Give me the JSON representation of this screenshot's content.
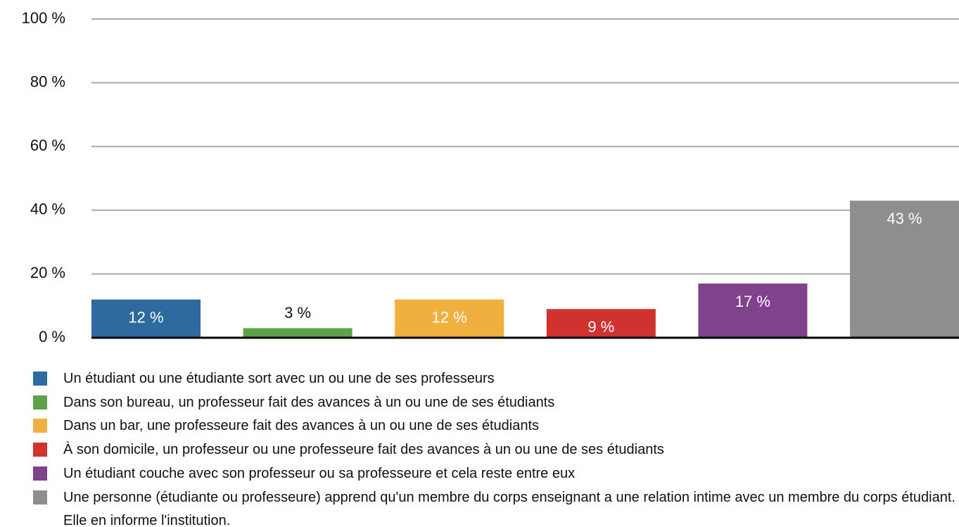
{
  "chart_data": {
    "type": "bar",
    "ylim": [
      0,
      100
    ],
    "yticks": [
      {
        "value": 0,
        "label": "0 %"
      },
      {
        "value": 20,
        "label": "20 %"
      },
      {
        "value": 40,
        "label": "40 %"
      },
      {
        "value": 60,
        "label": "60 %"
      },
      {
        "value": 80,
        "label": "80 %"
      },
      {
        "value": 100,
        "label": "100 %"
      }
    ],
    "grid": true,
    "series": [
      {
        "name": "Un étudiant ou une étudiante sort avec un ou une de ses professeurs",
        "color": "#2e6aa0",
        "values": [
          12
        ],
        "value_labels": [
          "12 %"
        ]
      },
      {
        "name": "Dans son bureau, un professeur fait des avances à un ou une de ses étudiants",
        "color": "#5fa04a",
        "values": [
          3
        ],
        "value_labels": [
          "3 %"
        ]
      },
      {
        "name": "Dans un bar, une professeure fait des avances à un ou une de ses étudiants",
        "color": "#f0b040",
        "values": [
          12
        ],
        "value_labels": [
          "12 %"
        ]
      },
      {
        "name": "À son domicile, un professeur ou une professeure fait des avances à un ou une de ses étudiants",
        "color": "#d03230",
        "values": [
          9
        ],
        "value_labels": [
          "9 %"
        ]
      },
      {
        "name": "Un étudiant couche avec son professeur ou sa professeure et cela reste entre eux",
        "color": "#80428c",
        "values": [
          17
        ],
        "value_labels": [
          "17 %"
        ]
      },
      {
        "name": "Une personne (étudiante ou professeure) apprend qu'un membre du corps enseignant a une relation intime avec un membre du corps étudiant. Elle en informe l'institution.",
        "color": "#8e8e8e",
        "values": [
          43
        ],
        "value_labels": [
          "43 %"
        ]
      }
    ]
  }
}
